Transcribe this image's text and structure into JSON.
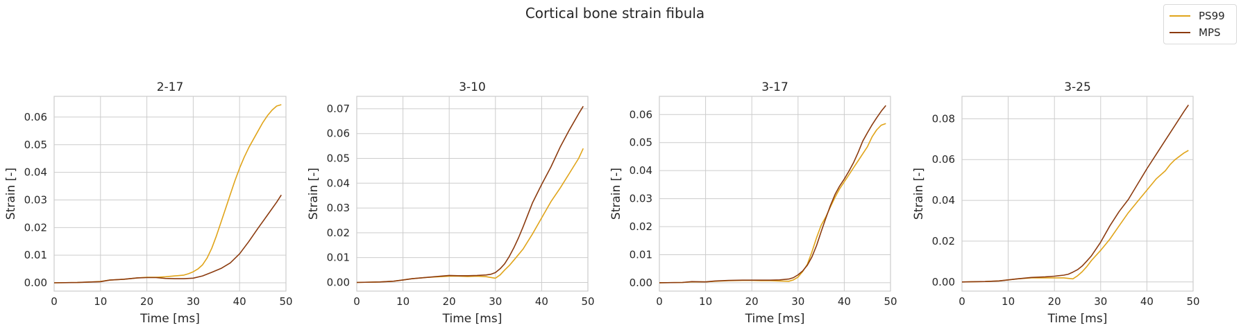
{
  "figure": {
    "title": "Cortical bone strain fibula"
  },
  "colors": {
    "PS99": "#e0a419",
    "MPS": "#8b3a0e",
    "grid": "#cccccc",
    "axis": "#cccccc",
    "text": "#262626"
  },
  "legend": {
    "location": "top-right",
    "entries": [
      {
        "label": "PS99",
        "colorKey": "PS99"
      },
      {
        "label": "MPS",
        "colorKey": "MPS"
      }
    ]
  },
  "chart_data": [
    {
      "type": "line",
      "title": "2-17",
      "xlabel": "Time [ms]",
      "ylabel": "Strain [-]",
      "xlim": [
        0,
        50
      ],
      "ylim": [
        -0.003,
        0.0675
      ],
      "xticks": [
        0,
        10,
        20,
        30,
        40,
        50
      ],
      "xtick_labels": [
        "0",
        "10",
        "20",
        "30",
        "40",
        "50"
      ],
      "yticks": [
        0,
        0.01,
        0.02,
        0.03,
        0.04,
        0.05,
        0.06
      ],
      "ytick_labels": [
        "0.00",
        "0.01",
        "0.02",
        "0.03",
        "0.04",
        "0.05",
        "0.06"
      ],
      "grid": true,
      "series": [
        {
          "name": "PS99",
          "x": [
            0,
            5,
            8,
            10,
            12,
            15,
            18,
            20,
            22,
            24,
            26,
            28,
            29,
            30,
            31,
            32,
            33,
            34,
            35,
            36,
            37,
            38,
            39,
            40,
            41,
            42,
            43,
            44,
            45,
            46,
            47,
            48,
            49
          ],
          "y": [
            0,
            0.0001,
            0.0003,
            0.0005,
            0.001,
            0.0013,
            0.0018,
            0.002,
            0.002,
            0.0022,
            0.0025,
            0.0028,
            0.0033,
            0.004,
            0.005,
            0.0065,
            0.009,
            0.0125,
            0.017,
            0.022,
            0.027,
            0.032,
            0.037,
            0.0415,
            0.0455,
            0.049,
            0.052,
            0.055,
            0.058,
            0.0605,
            0.0625,
            0.064,
            0.0645
          ]
        },
        {
          "name": "MPS",
          "x": [
            0,
            5,
            8,
            10,
            12,
            15,
            18,
            20,
            22,
            24,
            26,
            28,
            30,
            32,
            34,
            36,
            38,
            40,
            42,
            44,
            46,
            48,
            49
          ],
          "y": [
            0,
            0.0001,
            0.0003,
            0.0004,
            0.001,
            0.0013,
            0.0018,
            0.0019,
            0.0019,
            0.0016,
            0.0015,
            0.0015,
            0.0017,
            0.0025,
            0.0038,
            0.0052,
            0.0072,
            0.0105,
            0.015,
            0.0198,
            0.0245,
            0.0292,
            0.0318
          ]
        }
      ]
    },
    {
      "type": "line",
      "title": "3-10",
      "xlabel": "Time [ms]",
      "ylabel": "Strain [-]",
      "xlim": [
        0,
        50
      ],
      "ylim": [
        -0.0035,
        0.075
      ],
      "xticks": [
        0,
        10,
        20,
        30,
        40,
        50
      ],
      "xtick_labels": [
        "0",
        "10",
        "20",
        "30",
        "40",
        "50"
      ],
      "yticks": [
        0,
        0.01,
        0.02,
        0.03,
        0.04,
        0.05,
        0.06,
        0.07
      ],
      "ytick_labels": [
        "0.00",
        "0.01",
        "0.02",
        "0.03",
        "0.04",
        "0.05",
        "0.06",
        "0.07"
      ],
      "grid": true,
      "series": [
        {
          "name": "PS99",
          "x": [
            0,
            5,
            8,
            10,
            12,
            15,
            18,
            20,
            22,
            24,
            26,
            28,
            29,
            30,
            31,
            32,
            33,
            34,
            36,
            38,
            40,
            42,
            44,
            46,
            48,
            49
          ],
          "y": [
            0,
            0.0002,
            0.0005,
            0.001,
            0.0015,
            0.002,
            0.0023,
            0.0025,
            0.0025,
            0.0024,
            0.0025,
            0.0023,
            0.002,
            0.0017,
            0.003,
            0.005,
            0.0068,
            0.009,
            0.0135,
            0.0195,
            0.026,
            0.0325,
            0.038,
            0.044,
            0.05,
            0.054
          ]
        },
        {
          "name": "MPS",
          "x": [
            0,
            5,
            8,
            10,
            12,
            15,
            18,
            20,
            22,
            24,
            26,
            28,
            29,
            30,
            31,
            32,
            33,
            34,
            35,
            36,
            38,
            40,
            42,
            44,
            46,
            48,
            49
          ],
          "y": [
            0,
            0.0002,
            0.0005,
            0.001,
            0.0015,
            0.002,
            0.0025,
            0.0028,
            0.0027,
            0.0027,
            0.0028,
            0.003,
            0.0033,
            0.004,
            0.0055,
            0.0075,
            0.0105,
            0.014,
            0.018,
            0.0225,
            0.032,
            0.0395,
            0.0465,
            0.0545,
            0.0615,
            0.068,
            0.071
          ]
        }
      ]
    },
    {
      "type": "line",
      "title": "3-17",
      "xlabel": "Time [ms]",
      "ylabel": "Strain [-]",
      "xlim": [
        0,
        50
      ],
      "ylim": [
        -0.003,
        0.0665
      ],
      "xticks": [
        0,
        10,
        20,
        30,
        40,
        50
      ],
      "xtick_labels": [
        "0",
        "10",
        "20",
        "30",
        "40",
        "50"
      ],
      "yticks": [
        0,
        0.01,
        0.02,
        0.03,
        0.04,
        0.05,
        0.06
      ],
      "ytick_labels": [
        "0.00",
        "0.01",
        "0.02",
        "0.03",
        "0.04",
        "0.05",
        "0.06"
      ],
      "grid": true,
      "series": [
        {
          "name": "PS99",
          "x": [
            0,
            5,
            7,
            10,
            12,
            15,
            18,
            20,
            22,
            24,
            26,
            28,
            29,
            30,
            31,
            32,
            33,
            34,
            35,
            36,
            37,
            38,
            39,
            40,
            41,
            42,
            43,
            44,
            45,
            46,
            47,
            48,
            49
          ],
          "y": [
            0,
            0.0001,
            0.0003,
            0.0003,
            0.0005,
            0.0007,
            0.0008,
            0.0008,
            0.0007,
            0.0007,
            0.0006,
            0.0005,
            0.001,
            0.002,
            0.004,
            0.0065,
            0.011,
            0.016,
            0.0205,
            0.0235,
            0.027,
            0.0305,
            0.0335,
            0.036,
            0.0385,
            0.041,
            0.0435,
            0.046,
            0.0485,
            0.052,
            0.0545,
            0.0562,
            0.0568
          ]
        },
        {
          "name": "MPS",
          "x": [
            0,
            5,
            7,
            10,
            12,
            15,
            18,
            20,
            22,
            24,
            26,
            28,
            29,
            30,
            31,
            32,
            33,
            34,
            35,
            36,
            37,
            38,
            39,
            40,
            41,
            42,
            43,
            44,
            45,
            46,
            47,
            48,
            49
          ],
          "y": [
            0,
            0.0001,
            0.0004,
            0.0003,
            0.0006,
            0.0008,
            0.0009,
            0.0009,
            0.0009,
            0.0009,
            0.001,
            0.0013,
            0.0018,
            0.0028,
            0.0042,
            0.0062,
            0.0092,
            0.0132,
            0.0182,
            0.023,
            0.0275,
            0.0315,
            0.0345,
            0.037,
            0.0398,
            0.0428,
            0.0465,
            0.0505,
            0.0535,
            0.0563,
            0.0588,
            0.0612,
            0.0632
          ]
        }
      ]
    },
    {
      "type": "line",
      "title": "3-25",
      "xlabel": "Time [ms]",
      "ylabel": "Strain [-]",
      "xlim": [
        0,
        50
      ],
      "ylim": [
        -0.0045,
        0.091
      ],
      "xticks": [
        0,
        10,
        20,
        30,
        40,
        50
      ],
      "xtick_labels": [
        "0",
        "10",
        "20",
        "30",
        "40",
        "50"
      ],
      "yticks": [
        0,
        0.02,
        0.04,
        0.06,
        0.08
      ],
      "ytick_labels": [
        "0.00",
        "0.02",
        "0.04",
        "0.06",
        "0.08"
      ],
      "grid": true,
      "series": [
        {
          "name": "PS99",
          "x": [
            0,
            5,
            8,
            10,
            12,
            15,
            18,
            20,
            22,
            24,
            25,
            26,
            27,
            28,
            30,
            32,
            34,
            36,
            38,
            40,
            42,
            44,
            45,
            46,
            47,
            48,
            49
          ],
          "y": [
            0,
            0.0002,
            0.0005,
            0.001,
            0.0015,
            0.002,
            0.002,
            0.002,
            0.002,
            0.0015,
            0.003,
            0.005,
            0.0075,
            0.0105,
            0.0155,
            0.021,
            0.0275,
            0.034,
            0.0395,
            0.045,
            0.0505,
            0.0545,
            0.0575,
            0.0598,
            0.0615,
            0.0632,
            0.0645
          ]
        },
        {
          "name": "MPS",
          "x": [
            0,
            5,
            8,
            10,
            12,
            15,
            18,
            20,
            22,
            23,
            24,
            25,
            26,
            27,
            28,
            30,
            32,
            34,
            36,
            38,
            40,
            42,
            44,
            46,
            48,
            49
          ],
          "y": [
            0,
            0.0002,
            0.0005,
            0.001,
            0.0015,
            0.0022,
            0.0025,
            0.0028,
            0.0033,
            0.0038,
            0.0048,
            0.006,
            0.0078,
            0.0102,
            0.0128,
            0.0195,
            0.0275,
            0.0345,
            0.0405,
            0.048,
            0.0555,
            0.0625,
            0.0695,
            0.0765,
            0.0835,
            0.0868
          ]
        }
      ]
    }
  ]
}
